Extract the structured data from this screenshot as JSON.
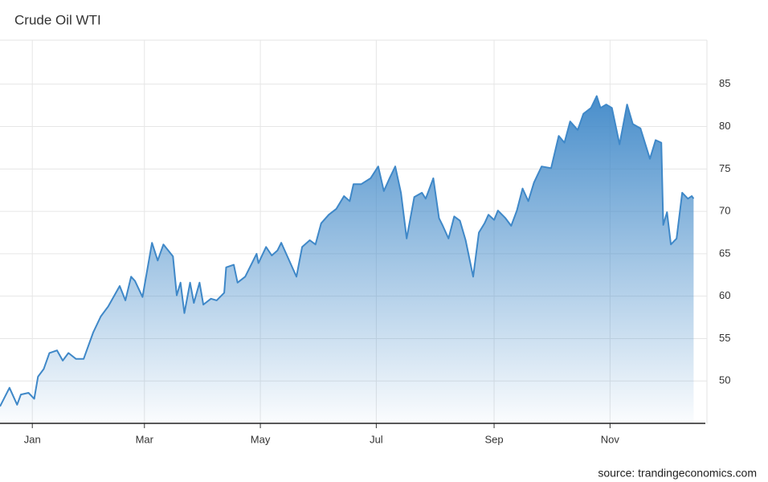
{
  "chart_data": {
    "type": "area",
    "title": "Crude Oil WTI",
    "source": "source: trandingeconomics.com",
    "series": [
      {
        "name": "Crude Oil WTI",
        "color": "#3f88c8",
        "x": [
          -16,
          -11,
          -7,
          -5,
          -1,
          2,
          4,
          7,
          10,
          14,
          17,
          20,
          24,
          28,
          33,
          37,
          41,
          47,
          50,
          53,
          55,
          59,
          64,
          67,
          70,
          75,
          77,
          79,
          81,
          84,
          86,
          89,
          91,
          95,
          98,
          102,
          103,
          107,
          109,
          113,
          119,
          120,
          124,
          127,
          130,
          132,
          135,
          140,
          143,
          147,
          150,
          153,
          157,
          161,
          165,
          168,
          170,
          174,
          179,
          183,
          186,
          189,
          192,
          195,
          198,
          202,
          206,
          208,
          212,
          215,
          217,
          220,
          223,
          226,
          229,
          233,
          236,
          239,
          241,
          244,
          246,
          250,
          253,
          256,
          259,
          262,
          265,
          269,
          274,
          278,
          281,
          284,
          288,
          291,
          295,
          298,
          300,
          303,
          306,
          310,
          314,
          317,
          321,
          326,
          329,
          332,
          333,
          335,
          337,
          340,
          343,
          346,
          348,
          349
        ],
        "values": [
          47.0,
          49.2,
          47.2,
          48.4,
          48.6,
          47.9,
          50.5,
          51.4,
          53.3,
          53.6,
          52.4,
          53.3,
          52.6,
          52.6,
          55.7,
          57.6,
          58.8,
          61.2,
          59.5,
          62.3,
          61.8,
          59.9,
          66.3,
          64.2,
          66.1,
          64.7,
          60.1,
          61.6,
          58.0,
          61.6,
          59.2,
          61.6,
          59.0,
          59.7,
          59.5,
          60.4,
          63.4,
          63.7,
          61.6,
          62.3,
          65.0,
          63.9,
          65.8,
          64.8,
          65.4,
          66.3,
          64.8,
          62.3,
          65.8,
          66.6,
          66.1,
          68.6,
          69.6,
          70.3,
          71.8,
          71.2,
          73.2,
          73.2,
          73.9,
          75.3,
          72.4,
          73.9,
          75.3,
          72.2,
          66.8,
          71.7,
          72.2,
          71.5,
          73.9,
          69.2,
          68.3,
          66.8,
          69.4,
          68.9,
          66.6,
          62.3,
          67.5,
          68.6,
          69.6,
          69.0,
          70.1,
          69.2,
          68.3,
          70.1,
          72.7,
          71.2,
          73.4,
          75.3,
          75.1,
          78.9,
          78.1,
          80.6,
          79.6,
          81.5,
          82.2,
          83.6,
          82.2,
          82.6,
          82.2,
          77.9,
          82.6,
          80.3,
          79.8,
          76.2,
          78.4,
          78.1,
          68.4,
          69.9,
          66.1,
          66.8,
          72.2,
          71.5,
          71.8,
          71.5
        ]
      }
    ],
    "xlim": [
      -16,
      356
    ],
    "xticks": [
      {
        "value": 1,
        "label": "Jan"
      },
      {
        "value": 60,
        "label": "Mar"
      },
      {
        "value": 121,
        "label": "May"
      },
      {
        "value": 182,
        "label": "Jul"
      },
      {
        "value": 244,
        "label": "Sep"
      },
      {
        "value": 305,
        "label": "Nov"
      }
    ],
    "ylim": [
      45,
      90
    ],
    "yticks": [
      50,
      55,
      60,
      65,
      70,
      75,
      80,
      85
    ],
    "grid": true
  }
}
